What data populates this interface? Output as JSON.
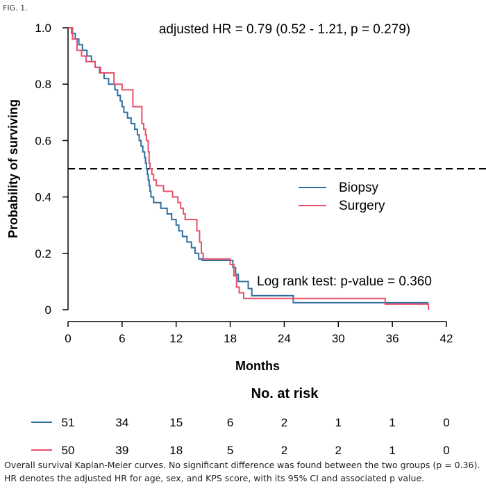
{
  "figure_label": "FIG. 1.",
  "caption": "Overall survival Kaplan-Meier curves. No significant difference was found between the two groups (p = 0.36). HR denotes the adjusted HR for age, sex, and KPS score, with its 95% CI and associated p value.",
  "chart_data": {
    "type": "line",
    "title": "adjusted HR = 0.79 (0.52 - 1.21, p = 0.279)",
    "xlabel": "Months",
    "ylabel": "Probability of surviving",
    "xlim": [
      0,
      42
    ],
    "ylim": [
      0,
      1.0
    ],
    "x_ticks": [
      0,
      6,
      12,
      18,
      24,
      30,
      36,
      42
    ],
    "x_tick_labels": [
      "0",
      "6",
      "12",
      "18",
      "24",
      "30",
      "36",
      "42"
    ],
    "y_ticks": [
      0,
      0.2,
      0.4,
      0.6,
      0.8,
      1.0
    ],
    "y_tick_labels": [
      "0",
      "0.2",
      "0.4",
      "0.6",
      "0.8",
      "1.0"
    ],
    "reference_line": {
      "y": 0.5,
      "style": "dashed"
    },
    "annotation": "Log rank test: p-value = 0.360",
    "legend_position": "right-middle",
    "series": [
      {
        "name": "Biopsy",
        "color": "#2e6e9e",
        "steps": [
          [
            0,
            1.0
          ],
          [
            0.4,
            0.98
          ],
          [
            0.8,
            0.96
          ],
          [
            1.2,
            0.94
          ],
          [
            1.6,
            0.92
          ],
          [
            2.1,
            0.9
          ],
          [
            2.6,
            0.88
          ],
          [
            3.0,
            0.86
          ],
          [
            3.5,
            0.84
          ],
          [
            4.0,
            0.82
          ],
          [
            4.5,
            0.8
          ],
          [
            5.2,
            0.78
          ],
          [
            5.5,
            0.76
          ],
          [
            5.8,
            0.74
          ],
          [
            6.0,
            0.72
          ],
          [
            6.2,
            0.7
          ],
          [
            6.6,
            0.68
          ],
          [
            7.0,
            0.66
          ],
          [
            7.4,
            0.64
          ],
          [
            7.7,
            0.62
          ],
          [
            7.9,
            0.6
          ],
          [
            8.1,
            0.58
          ],
          [
            8.3,
            0.56
          ],
          [
            8.5,
            0.54
          ],
          [
            8.6,
            0.52
          ],
          [
            8.7,
            0.5
          ],
          [
            8.8,
            0.48
          ],
          [
            8.9,
            0.46
          ],
          [
            9.0,
            0.44
          ],
          [
            9.1,
            0.42
          ],
          [
            9.2,
            0.4
          ],
          [
            9.5,
            0.38
          ],
          [
            10.3,
            0.36
          ],
          [
            11.0,
            0.34
          ],
          [
            11.5,
            0.32
          ],
          [
            12.0,
            0.3
          ],
          [
            12.3,
            0.28
          ],
          [
            12.7,
            0.26
          ],
          [
            13.2,
            0.24
          ],
          [
            13.7,
            0.22
          ],
          [
            14.1,
            0.2
          ],
          [
            14.5,
            0.18
          ],
          [
            14.9,
            0.175
          ],
          [
            18.3,
            0.15
          ],
          [
            18.6,
            0.125
          ],
          [
            18.9,
            0.1
          ],
          [
            20.0,
            0.075
          ],
          [
            20.4,
            0.05
          ],
          [
            25.0,
            0.025
          ],
          [
            40.0,
            0.025
          ]
        ]
      },
      {
        "name": "Surgery",
        "color": "#e8506a",
        "steps": [
          [
            0,
            1.0
          ],
          [
            0.5,
            0.96
          ],
          [
            1.0,
            0.92
          ],
          [
            1.5,
            0.9
          ],
          [
            2.0,
            0.88
          ],
          [
            3.0,
            0.86
          ],
          [
            3.6,
            0.84
          ],
          [
            5.1,
            0.8
          ],
          [
            6.0,
            0.78
          ],
          [
            7.2,
            0.72
          ],
          [
            8.2,
            0.66
          ],
          [
            8.4,
            0.64
          ],
          [
            8.6,
            0.62
          ],
          [
            8.7,
            0.6
          ],
          [
            8.9,
            0.56
          ],
          [
            9.0,
            0.52
          ],
          [
            9.1,
            0.5
          ],
          [
            9.3,
            0.48
          ],
          [
            9.5,
            0.46
          ],
          [
            9.8,
            0.44
          ],
          [
            10.6,
            0.42
          ],
          [
            11.6,
            0.4
          ],
          [
            12.2,
            0.38
          ],
          [
            12.5,
            0.36
          ],
          [
            12.8,
            0.34
          ],
          [
            13.0,
            0.32
          ],
          [
            14.3,
            0.28
          ],
          [
            14.6,
            0.24
          ],
          [
            14.8,
            0.2
          ],
          [
            15.0,
            0.18
          ],
          [
            18.0,
            0.16
          ],
          [
            18.4,
            0.12
          ],
          [
            18.7,
            0.08
          ],
          [
            19.0,
            0.06
          ],
          [
            19.5,
            0.04
          ],
          [
            35.2,
            0.02
          ],
          [
            40.0,
            0.0
          ]
        ]
      }
    ],
    "risk_table": {
      "title": "No. at risk",
      "rows": [
        {
          "name": "Biopsy",
          "color": "#2e6e9e",
          "counts": [
            "51",
            "34",
            "15",
            "6",
            "2",
            "1",
            "1",
            "0"
          ]
        },
        {
          "name": "Surgery",
          "color": "#e8506a",
          "counts": [
            "50",
            "39",
            "18",
            "5",
            "2",
            "2",
            "1",
            "0"
          ]
        }
      ]
    }
  }
}
